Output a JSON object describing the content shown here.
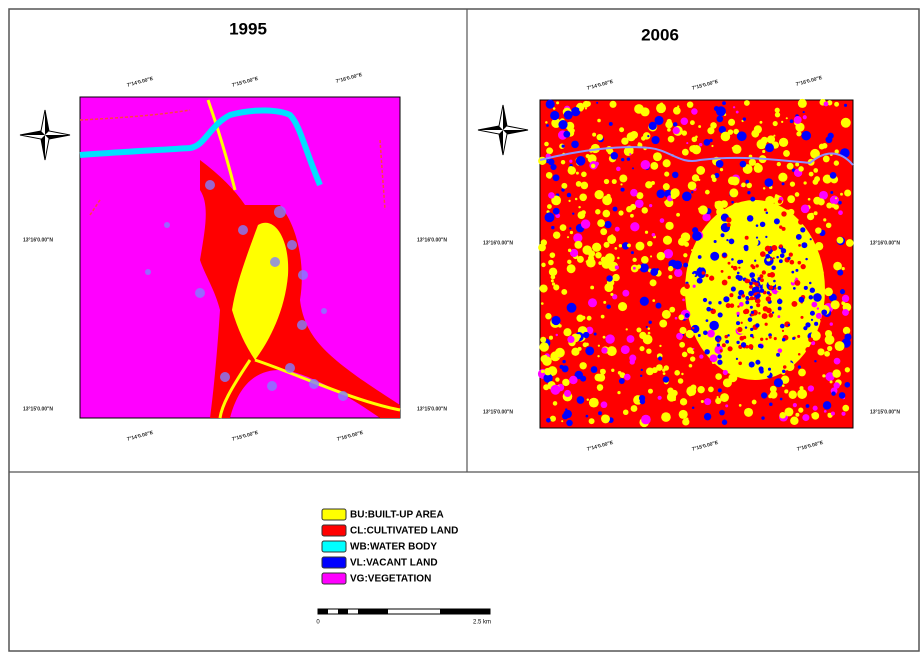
{
  "panels": [
    {
      "title": "1995",
      "top_labels": [
        "7°14'0.00\"E",
        "7°15'0.00\"E",
        "7°16'0.00\"E"
      ],
      "bottom_labels": [
        "7°14'0.00\"E",
        "7°15'0.00\"E",
        "7°16'0.00\"E"
      ],
      "left_labels": [
        "13°16'0.00\"N",
        "13°15'0.00\"N"
      ],
      "right_labels": [
        "13°16'0.00\"N",
        "13°15'0.00\"N"
      ]
    },
    {
      "title": "2006",
      "top_labels": [
        "7°14'0.00\"E",
        "7°15'0.00\"E",
        "7°16'0.00\"E"
      ],
      "bottom_labels": [
        "7°14'0.00\"E",
        "7°15'0.00\"E",
        "7°16'0.00\"E"
      ],
      "left_labels": [
        "13°16'0.00\"N",
        "13°15'0.00\"N"
      ],
      "right_labels": [
        "13°16'0.00\"N",
        "13°15'0.00\"N"
      ]
    }
  ],
  "legend": [
    {
      "label": "BU:BUILT-UP AREA",
      "color": "#ffff00"
    },
    {
      "label": "CL:CULTIVATED LAND",
      "color": "#ff0000"
    },
    {
      "label": "WB:WATER BODY",
      "color": "#00ffff"
    },
    {
      "label": "VL:VACANT LAND",
      "color": "#0000ff"
    },
    {
      "label": "VG:VEGETATION",
      "color": "#ff00ff"
    }
  ],
  "scale_bar": {
    "start": "0",
    "end": "2.5 km"
  }
}
